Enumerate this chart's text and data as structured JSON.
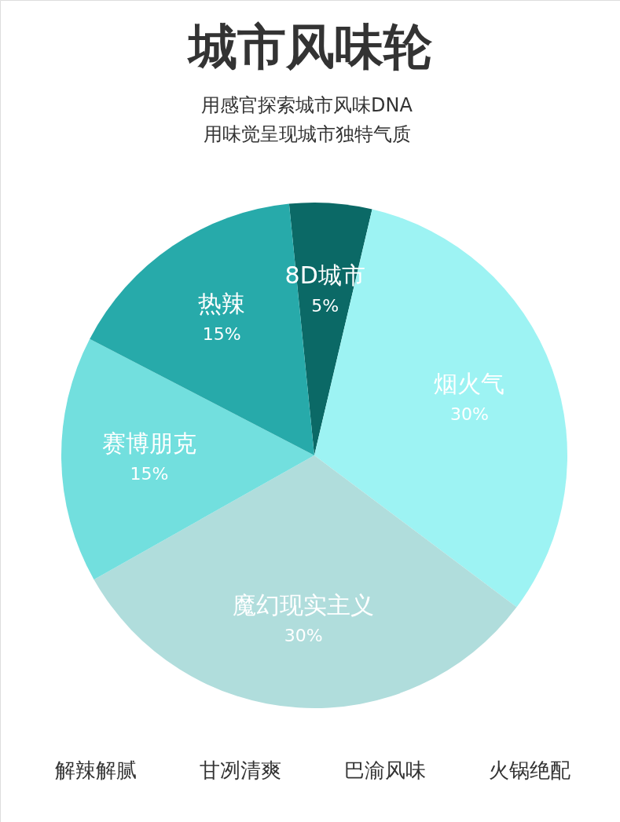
{
  "chart_data": {
    "type": "pie",
    "title": "城市风味轮",
    "subtitle": "用感官探索城市风味DNA\n用味觉呈现城市独特气质",
    "categories": [
      "8D城市",
      "烟火气",
      "魔幻现实主义",
      "赛博朋克",
      "热辣"
    ],
    "values": [
      5,
      30,
      30,
      15,
      15
    ],
    "colors": [
      "#0b6966",
      "#9df3f3",
      "#b0dddc",
      "#72dfde",
      "#27aaaa"
    ],
    "value_labels": [
      "5%",
      "30%",
      "30%",
      "15%",
      "15%"
    ],
    "annotations": [
      "解辣解腻",
      "甘冽清爽",
      "巴渝风味",
      "火锅绝配"
    ]
  }
}
